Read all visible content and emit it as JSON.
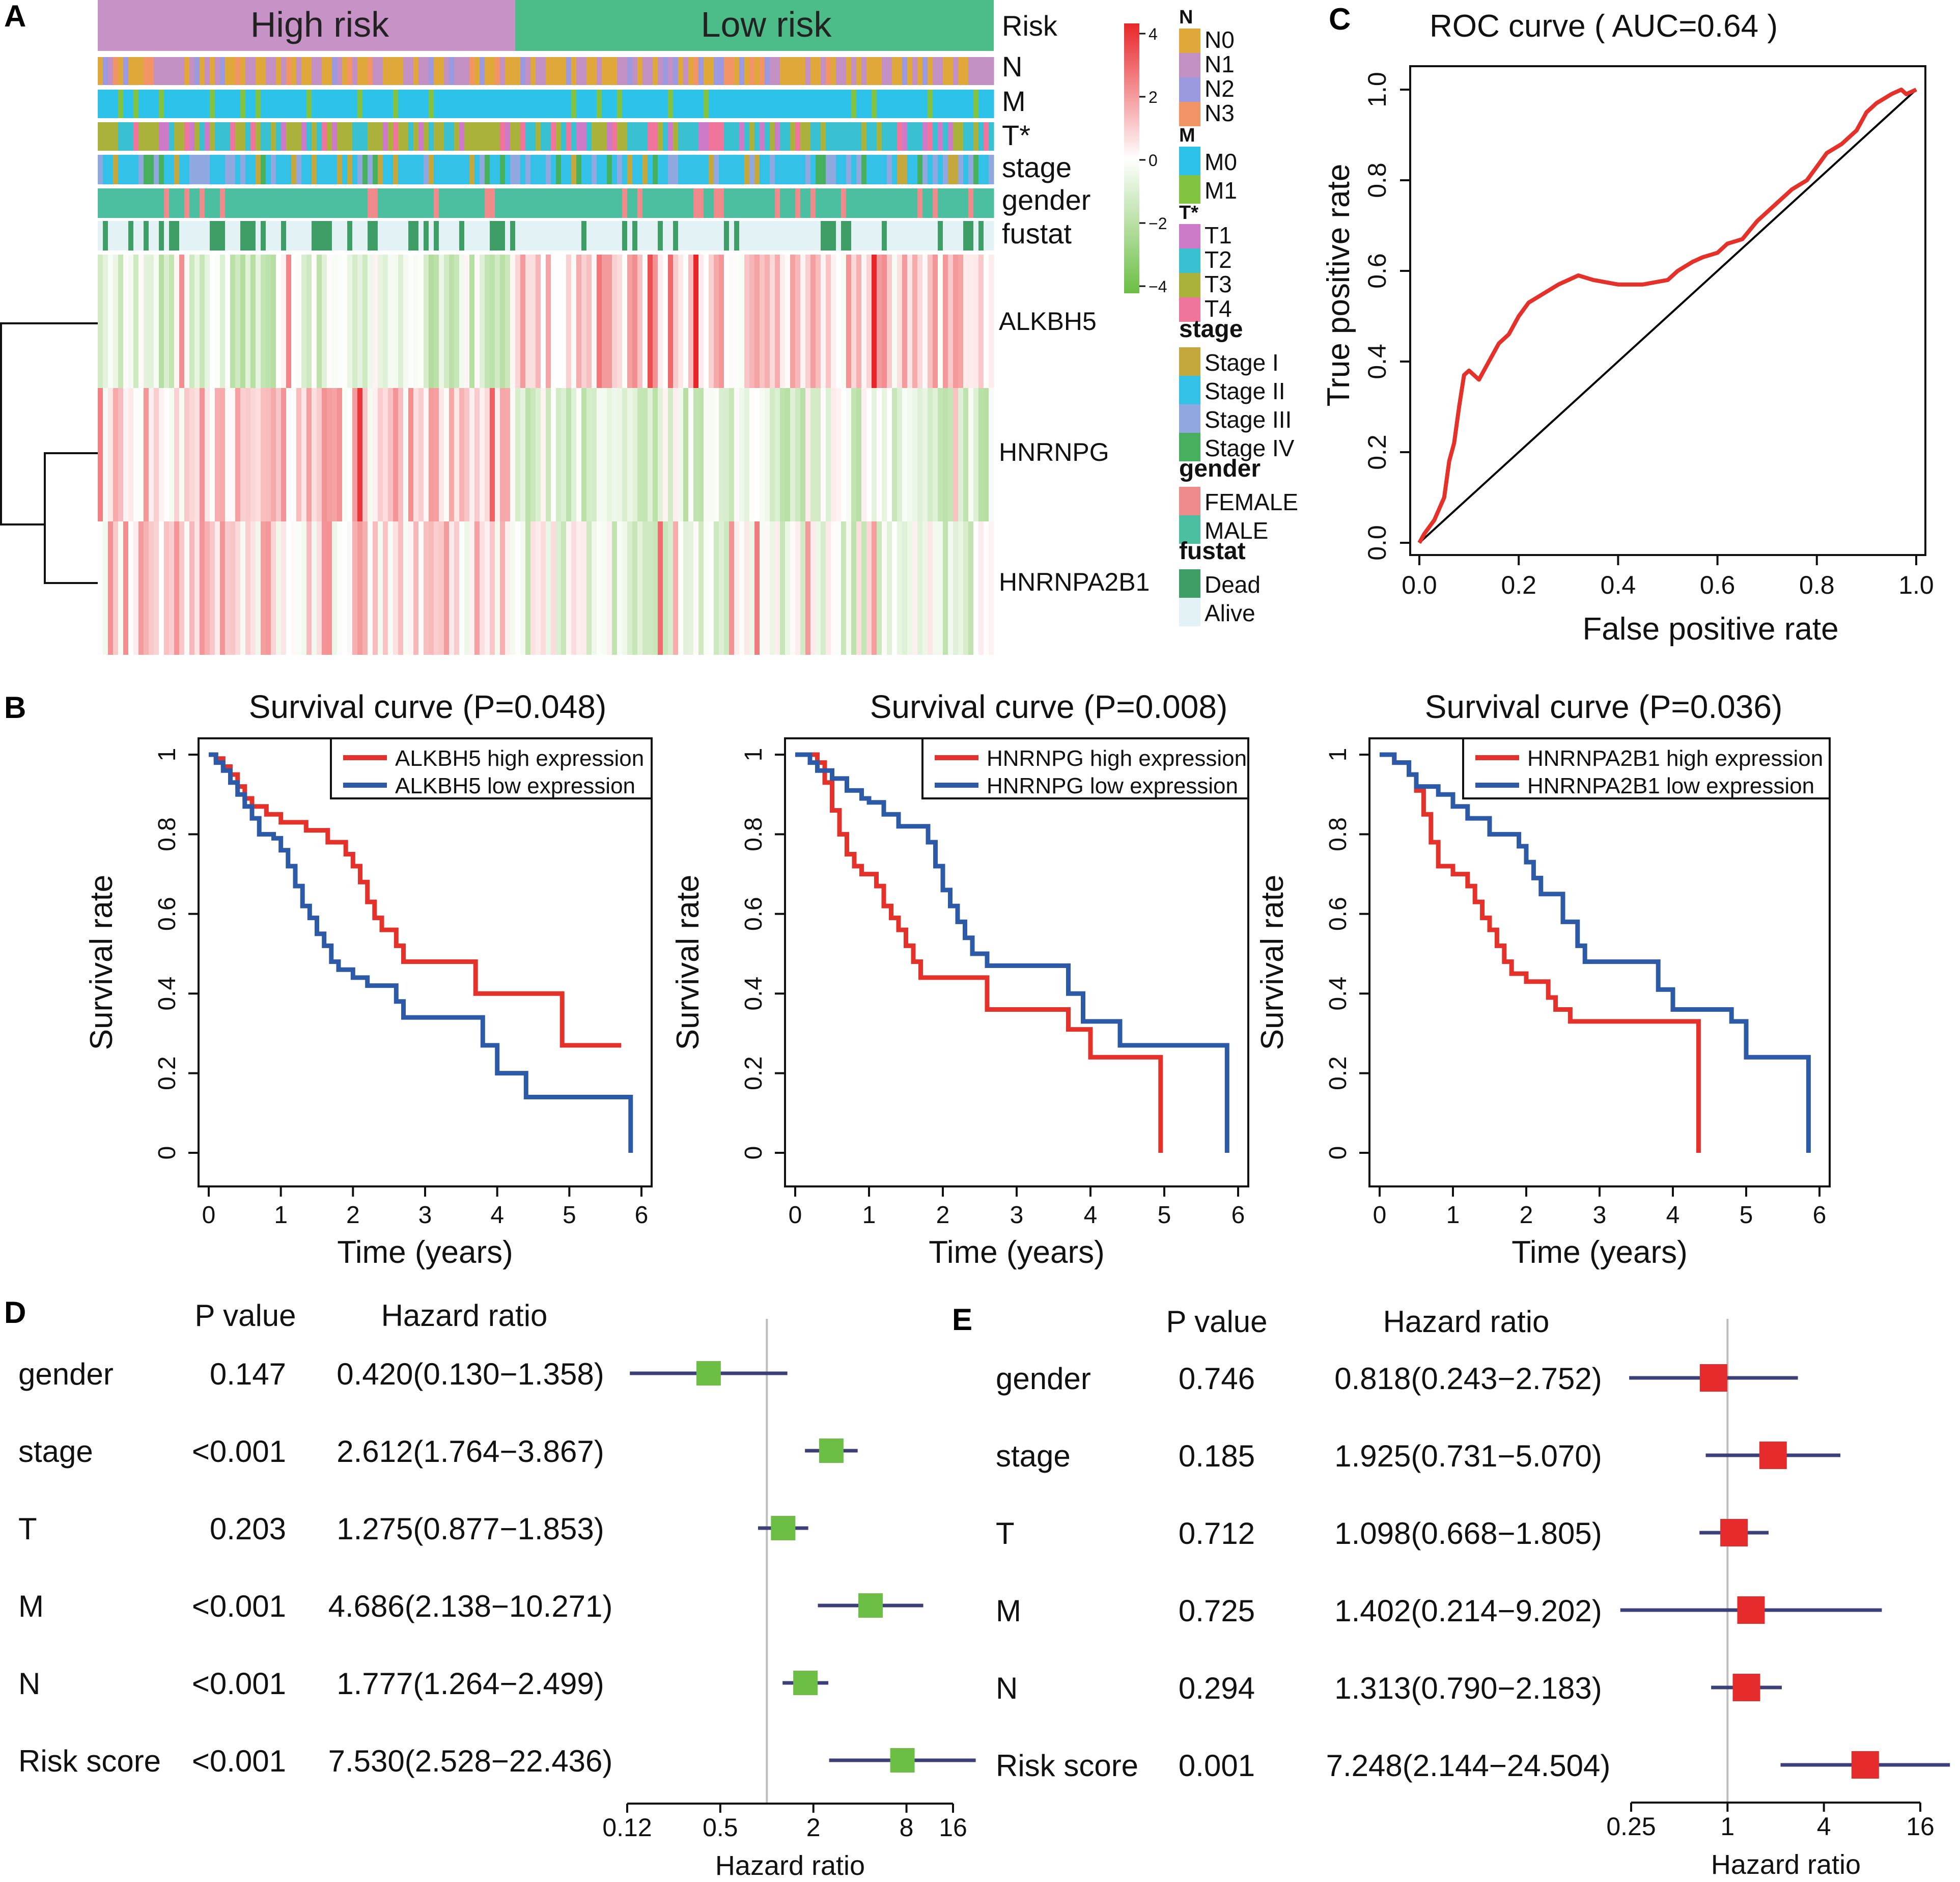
{
  "colors": {
    "red": "#e4312a",
    "blue": "#2d5aa6",
    "green_marker": "#6cbe45",
    "red_marker": "#e52b2b",
    "ci_line": "#3d3f78",
    "ref_line": "#bdbdbd",
    "high_risk": "#c793c6",
    "low_risk": "#4cbd88"
  },
  "panel_labels": {
    "a": "A",
    "b": "B",
    "c": "C",
    "d": "D",
    "e": "E"
  },
  "heatmap": {
    "risk_groups": [
      "High risk",
      "Low risk"
    ],
    "annotation_tracks": [
      "Risk",
      "N",
      "M",
      "T*",
      "stage",
      "gender",
      "fustat"
    ],
    "genes": [
      "ALKBH5",
      "HNRNPG",
      "HNRNPA2B1"
    ],
    "color_scale": {
      "ticks": [
        "4",
        "2",
        "0",
        "−2",
        "−4"
      ],
      "max": 4,
      "min": -4
    },
    "legend": [
      {
        "title": "N",
        "items": [
          {
            "label": "N0",
            "color": "#e0a83b"
          },
          {
            "label": "N1",
            "color": "#c390c4"
          },
          {
            "label": "N2",
            "color": "#9b9ae0"
          },
          {
            "label": "N3",
            "color": "#f29466"
          }
        ]
      },
      {
        "title": "M",
        "items": [
          {
            "label": "M0",
            "color": "#2cc2ea"
          },
          {
            "label": "M1",
            "color": "#82c341"
          }
        ]
      },
      {
        "title": "T*",
        "items": [
          {
            "label": "T1",
            "color": "#cd7bc9"
          },
          {
            "label": "T2",
            "color": "#39c1d1"
          },
          {
            "label": "T3",
            "color": "#aab23c"
          },
          {
            "label": "T4",
            "color": "#f0759c"
          }
        ]
      },
      {
        "title": "stage",
        "items": [
          {
            "label": "Stage I",
            "color": "#c5a83d"
          },
          {
            "label": "Stage II",
            "color": "#34c1e8"
          },
          {
            "label": "Stage III",
            "color": "#8fa9e0"
          },
          {
            "label": "Stage IV",
            "color": "#47b05f"
          }
        ]
      },
      {
        "title": "gender",
        "items": [
          {
            "label": "FEMALE",
            "color": "#f08b8b"
          },
          {
            "label": "MALE",
            "color": "#4cbfa1"
          }
        ]
      },
      {
        "title": "fustat",
        "items": [
          {
            "label": "Dead",
            "color": "#3f9e66"
          },
          {
            "label": "Alive",
            "color": "#e3f3f5"
          }
        ]
      }
    ]
  },
  "chart_data": [
    {
      "panel": "C",
      "type": "line",
      "title": "ROC curve ( AUC=0.64 )",
      "xlabel": "False positive rate",
      "ylabel": "True positive rate",
      "xlim": [
        0,
        1
      ],
      "ylim": [
        0,
        1
      ],
      "xticks": [
        "0.0",
        "0.2",
        "0.4",
        "0.6",
        "0.8",
        "1.0"
      ],
      "yticks": [
        "0.0",
        "0.2",
        "0.4",
        "0.6",
        "0.8",
        "1.0"
      ],
      "auc": 0.64,
      "series": [
        {
          "name": "ROC",
          "color": "#e4312a",
          "x": [
            0.0,
            0.01,
            0.03,
            0.05,
            0.06,
            0.07,
            0.08,
            0.09,
            0.1,
            0.12,
            0.14,
            0.15,
            0.16,
            0.18,
            0.2,
            0.22,
            0.25,
            0.28,
            0.3,
            0.32,
            0.35,
            0.4,
            0.45,
            0.5,
            0.52,
            0.55,
            0.57,
            0.6,
            0.62,
            0.65,
            0.68,
            0.7,
            0.72,
            0.75,
            0.78,
            0.8,
            0.82,
            0.85,
            0.88,
            0.9,
            0.92,
            0.95,
            0.97,
            0.98,
            1.0
          ],
          "y": [
            0.0,
            0.02,
            0.05,
            0.1,
            0.18,
            0.22,
            0.3,
            0.37,
            0.38,
            0.36,
            0.4,
            0.42,
            0.44,
            0.46,
            0.5,
            0.53,
            0.55,
            0.57,
            0.58,
            0.59,
            0.58,
            0.57,
            0.57,
            0.58,
            0.6,
            0.62,
            0.63,
            0.64,
            0.66,
            0.67,
            0.71,
            0.73,
            0.75,
            0.78,
            0.8,
            0.83,
            0.86,
            0.88,
            0.91,
            0.95,
            0.97,
            0.99,
            1.0,
            0.99,
            1.0
          ]
        },
        {
          "name": "Reference",
          "color": "#000000",
          "x": [
            0,
            1
          ],
          "y": [
            0,
            1
          ]
        }
      ]
    },
    {
      "panel": "B1",
      "type": "line",
      "title": "Survival curve (P=0.048)",
      "xlabel": "Time (years)",
      "ylabel": "Survival rate",
      "xlim": [
        0,
        6
      ],
      "ylim": [
        0,
        1
      ],
      "xticks": [
        "0",
        "1",
        "2",
        "3",
        "4",
        "5",
        "6"
      ],
      "yticks": [
        "0",
        "0.2",
        "0.4",
        "0.6",
        "0.8",
        "1"
      ],
      "p_value": 0.048,
      "series": [
        {
          "name": "ALKBH5 high expression",
          "color": "#e4312a",
          "steps": [
            [
              0,
              1.0
            ],
            [
              0.1,
              0.99
            ],
            [
              0.2,
              0.97
            ],
            [
              0.3,
              0.95
            ],
            [
              0.4,
              0.92
            ],
            [
              0.5,
              0.89
            ],
            [
              0.6,
              0.87
            ],
            [
              0.8,
              0.85
            ],
            [
              1.0,
              0.83
            ],
            [
              1.35,
              0.81
            ],
            [
              1.65,
              0.78
            ],
            [
              1.9,
              0.75
            ],
            [
              2.0,
              0.72
            ],
            [
              2.1,
              0.68
            ],
            [
              2.2,
              0.63
            ],
            [
              2.3,
              0.59
            ],
            [
              2.4,
              0.56
            ],
            [
              2.6,
              0.52
            ],
            [
              2.7,
              0.48
            ],
            [
              3.7,
              0.4
            ],
            [
              4.9,
              0.27
            ],
            [
              5.7,
              0.27
            ]
          ]
        },
        {
          "name": "ALKBH5 low expression",
          "color": "#2d5aa6",
          "steps": [
            [
              0,
              1.0
            ],
            [
              0.1,
              0.98
            ],
            [
              0.2,
              0.96
            ],
            [
              0.3,
              0.93
            ],
            [
              0.4,
              0.9
            ],
            [
              0.5,
              0.87
            ],
            [
              0.6,
              0.84
            ],
            [
              0.7,
              0.8
            ],
            [
              0.9,
              0.79
            ],
            [
              1.0,
              0.76
            ],
            [
              1.1,
              0.72
            ],
            [
              1.2,
              0.67
            ],
            [
              1.3,
              0.62
            ],
            [
              1.4,
              0.59
            ],
            [
              1.5,
              0.55
            ],
            [
              1.6,
              0.52
            ],
            [
              1.7,
              0.48
            ],
            [
              1.8,
              0.46
            ],
            [
              2.0,
              0.44
            ],
            [
              2.2,
              0.42
            ],
            [
              2.6,
              0.38
            ],
            [
              2.7,
              0.34
            ],
            [
              3.8,
              0.27
            ],
            [
              4.0,
              0.2
            ],
            [
              4.4,
              0.14
            ],
            [
              5.8,
              0.14
            ],
            [
              5.85,
              0.0
            ]
          ]
        }
      ]
    },
    {
      "panel": "B2",
      "type": "line",
      "title": "Survival curve (P=0.008)",
      "xlabel": "Time (years)",
      "ylabel": "Survival rate",
      "xlim": [
        0,
        6
      ],
      "ylim": [
        0,
        1
      ],
      "xticks": [
        "0",
        "1",
        "2",
        "3",
        "4",
        "5",
        "6"
      ],
      "yticks": [
        "0",
        "0.2",
        "0.4",
        "0.6",
        "0.8",
        "1"
      ],
      "p_value": 0.008,
      "series": [
        {
          "name": "HNRNPG high expression",
          "color": "#e4312a",
          "steps": [
            [
              0,
              1.0
            ],
            [
              0.3,
              0.98
            ],
            [
              0.4,
              0.93
            ],
            [
              0.5,
              0.86
            ],
            [
              0.6,
              0.8
            ],
            [
              0.7,
              0.75
            ],
            [
              0.8,
              0.72
            ],
            [
              0.9,
              0.7
            ],
            [
              1.1,
              0.67
            ],
            [
              1.2,
              0.62
            ],
            [
              1.3,
              0.59
            ],
            [
              1.4,
              0.56
            ],
            [
              1.5,
              0.52
            ],
            [
              1.6,
              0.48
            ],
            [
              1.7,
              0.44
            ],
            [
              2.6,
              0.36
            ],
            [
              3.7,
              0.31
            ],
            [
              4.0,
              0.24
            ],
            [
              4.9,
              0.24
            ],
            [
              4.95,
              0.0
            ]
          ]
        },
        {
          "name": "HNRNPG low expression",
          "color": "#2d5aa6",
          "steps": [
            [
              0,
              1.0
            ],
            [
              0.2,
              0.98
            ],
            [
              0.3,
              0.96
            ],
            [
              0.5,
              0.94
            ],
            [
              0.7,
              0.91
            ],
            [
              0.9,
              0.89
            ],
            [
              1.0,
              0.88
            ],
            [
              1.2,
              0.85
            ],
            [
              1.4,
              0.82
            ],
            [
              1.8,
              0.78
            ],
            [
              1.9,
              0.72
            ],
            [
              2.0,
              0.66
            ],
            [
              2.1,
              0.62
            ],
            [
              2.2,
              0.58
            ],
            [
              2.3,
              0.54
            ],
            [
              2.4,
              0.5
            ],
            [
              2.6,
              0.47
            ],
            [
              3.7,
              0.4
            ],
            [
              3.9,
              0.33
            ],
            [
              4.4,
              0.27
            ],
            [
              5.8,
              0.27
            ],
            [
              5.85,
              0.0
            ]
          ]
        }
      ]
    },
    {
      "panel": "B3",
      "type": "line",
      "title": "Survival curve (P=0.036)",
      "xlabel": "Time (years)",
      "ylabel": "Survival rate",
      "xlim": [
        0,
        6
      ],
      "ylim": [
        0,
        1
      ],
      "xticks": [
        "0",
        "1",
        "2",
        "3",
        "4",
        "5",
        "6"
      ],
      "yticks": [
        "0",
        "0.2",
        "0.4",
        "0.6",
        "0.8",
        "1"
      ],
      "p_value": 0.036,
      "series": [
        {
          "name": "HNRNPA2B1 high expression",
          "color": "#e4312a",
          "steps": [
            [
              0,
              1.0
            ],
            [
              0.2,
              0.98
            ],
            [
              0.4,
              0.95
            ],
            [
              0.5,
              0.91
            ],
            [
              0.6,
              0.85
            ],
            [
              0.7,
              0.78
            ],
            [
              0.8,
              0.72
            ],
            [
              1.0,
              0.7
            ],
            [
              1.2,
              0.67
            ],
            [
              1.3,
              0.63
            ],
            [
              1.4,
              0.59
            ],
            [
              1.5,
              0.56
            ],
            [
              1.6,
              0.52
            ],
            [
              1.7,
              0.48
            ],
            [
              1.8,
              0.45
            ],
            [
              2.0,
              0.43
            ],
            [
              2.3,
              0.39
            ],
            [
              2.4,
              0.36
            ],
            [
              2.6,
              0.33
            ],
            [
              3.6,
              0.33
            ],
            [
              4.3,
              0.33
            ],
            [
              4.35,
              0.0
            ]
          ]
        },
        {
          "name": "HNRNPA2B1 low expression",
          "color": "#2d5aa6",
          "steps": [
            [
              0,
              1.0
            ],
            [
              0.2,
              0.98
            ],
            [
              0.4,
              0.95
            ],
            [
              0.5,
              0.92
            ],
            [
              0.8,
              0.9
            ],
            [
              1.0,
              0.87
            ],
            [
              1.2,
              0.84
            ],
            [
              1.5,
              0.8
            ],
            [
              1.9,
              0.77
            ],
            [
              2.0,
              0.73
            ],
            [
              2.1,
              0.69
            ],
            [
              2.2,
              0.65
            ],
            [
              2.5,
              0.58
            ],
            [
              2.7,
              0.52
            ],
            [
              2.8,
              0.48
            ],
            [
              3.8,
              0.41
            ],
            [
              4.0,
              0.36
            ],
            [
              4.8,
              0.33
            ],
            [
              4.9,
              0.33
            ],
            [
              5.0,
              0.24
            ],
            [
              5.8,
              0.24
            ],
            [
              5.85,
              0.0
            ]
          ]
        }
      ]
    },
    {
      "panel": "D",
      "type": "forest",
      "col_headers": [
        "P value",
        "Hazard ratio"
      ],
      "xlabel": "Hazard ratio",
      "xticks": [
        "0.12",
        "0.5",
        "2",
        "8",
        "16"
      ],
      "xtick_values": [
        0.125,
        0.5,
        2,
        8,
        16
      ],
      "ref_value": 1,
      "marker_color": "#6cbe45",
      "rows": [
        {
          "name": "gender",
          "p": "0.147",
          "hr_text": "0.420(0.130−1.358)",
          "hr": 0.42,
          "lo": 0.13,
          "hi": 1.358
        },
        {
          "name": "stage",
          "p": "<0.001",
          "hr_text": "2.612(1.764−3.867)",
          "hr": 2.612,
          "lo": 1.764,
          "hi": 3.867
        },
        {
          "name": "T",
          "p": "0.203",
          "hr_text": "1.275(0.877−1.853)",
          "hr": 1.275,
          "lo": 0.877,
          "hi": 1.853
        },
        {
          "name": "M",
          "p": "<0.001",
          "hr_text": "4.686(2.138−10.271)",
          "hr": 4.686,
          "lo": 2.138,
          "hi": 10.271
        },
        {
          "name": "N",
          "p": "<0.001",
          "hr_text": "1.777(1.264−2.499)",
          "hr": 1.777,
          "lo": 1.264,
          "hi": 2.499
        },
        {
          "name": "Risk score",
          "p": "<0.001",
          "hr_text": "7.530(2.528−22.436)",
          "hr": 7.53,
          "lo": 2.528,
          "hi": 22.436
        }
      ]
    },
    {
      "panel": "E",
      "type": "forest",
      "col_headers": [
        "P value",
        "Hazard ratio"
      ],
      "xlabel": "Hazard ratio",
      "xticks": [
        "0.25",
        "1",
        "4",
        "16"
      ],
      "xtick_values": [
        0.25,
        1,
        4,
        16
      ],
      "ref_value": 1,
      "marker_color": "#e52b2b",
      "rows": [
        {
          "name": "gender",
          "p": "0.746",
          "hr_text": "0.818(0.243−2.752)",
          "hr": 0.818,
          "lo": 0.243,
          "hi": 2.752
        },
        {
          "name": "stage",
          "p": "0.185",
          "hr_text": "1.925(0.731−5.070)",
          "hr": 1.925,
          "lo": 0.731,
          "hi": 5.07
        },
        {
          "name": "T",
          "p": "0.712",
          "hr_text": "1.098(0.668−1.805)",
          "hr": 1.098,
          "lo": 0.668,
          "hi": 1.805
        },
        {
          "name": "M",
          "p": "0.725",
          "hr_text": "1.402(0.214−9.202)",
          "hr": 1.402,
          "lo": 0.214,
          "hi": 9.202
        },
        {
          "name": "N",
          "p": "0.294",
          "hr_text": "1.313(0.790−2.183)",
          "hr": 1.313,
          "lo": 0.79,
          "hi": 2.183
        },
        {
          "name": "Risk score",
          "p": "0.001",
          "hr_text": "7.248(2.144−24.504)",
          "hr": 7.248,
          "lo": 2.144,
          "hi": 24.504
        }
      ]
    }
  ]
}
